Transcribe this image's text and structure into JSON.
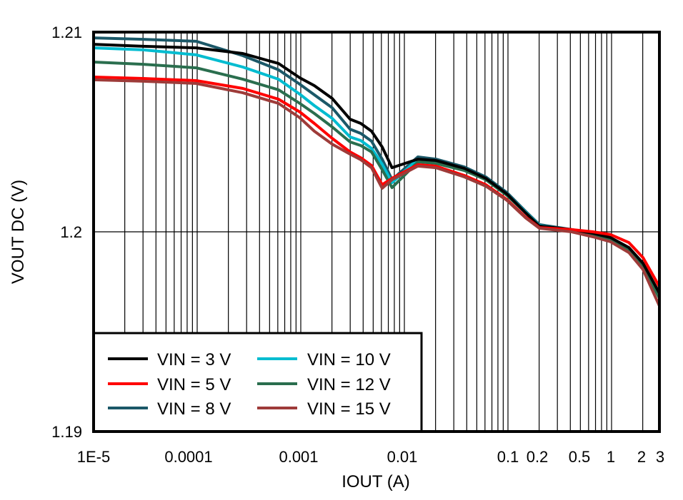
{
  "chart_data": {
    "type": "line",
    "title": "",
    "xlabel": "IOUT (A)",
    "ylabel": "VOUT DC (V)",
    "xscale": "log",
    "xlim": [
      1e-05,
      3
    ],
    "ylim": [
      1.19,
      1.21
    ],
    "grid": true,
    "legend_position": "lower left",
    "x_ticks": [
      {
        "value": 1e-05,
        "label": "1E-5"
      },
      {
        "value": 0.0001,
        "label": "0.0001"
      },
      {
        "value": 0.001,
        "label": "0.001"
      },
      {
        "value": 0.01,
        "label": "0.01"
      },
      {
        "value": 0.1,
        "label": "0.1"
      },
      {
        "value": 0.2,
        "label": "0.2"
      },
      {
        "value": 0.5,
        "label": "0.5"
      },
      {
        "value": 1,
        "label": "1"
      },
      {
        "value": 2,
        "label": "2"
      },
      {
        "value": 3,
        "label": "3"
      }
    ],
    "y_ticks": [
      {
        "value": 1.21,
        "label": "1.21"
      },
      {
        "value": 1.2,
        "label": "1.2"
      },
      {
        "value": 1.19,
        "label": "1.19"
      }
    ],
    "x": [
      1e-05,
      3e-05,
      9.8e-05,
      0.000276,
      0.00061,
      0.00098,
      0.00135,
      0.00201,
      0.00299,
      0.00379,
      0.00482,
      0.0061,
      0.0076,
      0.0135,
      0.0201,
      0.0379,
      0.061,
      0.098,
      0.147,
      0.201,
      0.411,
      0.662,
      0.98,
      1.47,
      2.01,
      2.9
    ],
    "series": [
      {
        "name": "VIN = 3 V",
        "color": "#000000",
        "values": [
          1.20939,
          1.20929,
          1.20921,
          1.20893,
          1.20843,
          1.20771,
          1.20732,
          1.20668,
          1.20564,
          1.20543,
          1.20504,
          1.20425,
          1.20321,
          1.20364,
          1.20357,
          1.20318,
          1.20268,
          1.20189,
          1.20096,
          1.20029,
          1.20011,
          1.19993,
          1.19971,
          1.19921,
          1.19843,
          1.19693
        ]
      },
      {
        "name": "VIN = 5 V",
        "color": "#ff0000",
        "values": [
          1.20775,
          1.20768,
          1.20757,
          1.20718,
          1.20664,
          1.206,
          1.20543,
          1.20468,
          1.204,
          1.20371,
          1.20332,
          1.20236,
          1.20268,
          1.20336,
          1.20329,
          1.20282,
          1.20236,
          1.20161,
          1.20075,
          1.20021,
          1.20011,
          1.2,
          1.19986,
          1.19946,
          1.19871,
          1.19725
        ]
      },
      {
        "name": "VIN = 8 V",
        "color": "#1b5868",
        "values": [
          1.20971,
          1.20964,
          1.20954,
          1.20882,
          1.20811,
          1.20739,
          1.20686,
          1.20621,
          1.20514,
          1.20493,
          1.20454,
          1.20364,
          1.20261,
          1.20375,
          1.20364,
          1.20325,
          1.20275,
          1.20196,
          1.20104,
          1.20036,
          1.20011,
          1.19989,
          1.19964,
          1.19911,
          1.19832,
          1.19682
        ]
      },
      {
        "name": "VIN = 10 V",
        "color": "#00bcd0",
        "values": [
          1.20921,
          1.20911,
          1.20886,
          1.20825,
          1.20764,
          1.20689,
          1.20632,
          1.20568,
          1.20475,
          1.20457,
          1.20418,
          1.20339,
          1.20246,
          1.20364,
          1.20354,
          1.20318,
          1.20268,
          1.20189,
          1.201,
          1.20032,
          1.20007,
          1.19986,
          1.19961,
          1.19907,
          1.19829,
          1.19679
        ]
      },
      {
        "name": "VIN = 12 V",
        "color": "#2a6e4e",
        "values": [
          1.2085,
          1.20839,
          1.20821,
          1.20764,
          1.20711,
          1.20643,
          1.20593,
          1.20525,
          1.2045,
          1.20432,
          1.204,
          1.20311,
          1.20221,
          1.2035,
          1.20343,
          1.20307,
          1.20261,
          1.20182,
          1.20096,
          1.20029,
          1.20004,
          1.19982,
          1.19957,
          1.19904,
          1.19825,
          1.19668
        ]
      },
      {
        "name": "VIN = 15 V",
        "color": "#9e3b39",
        "values": [
          1.20761,
          1.20754,
          1.20743,
          1.20696,
          1.20643,
          1.20571,
          1.20504,
          1.20439,
          1.20389,
          1.20361,
          1.20321,
          1.20218,
          1.20261,
          1.20329,
          1.20321,
          1.20275,
          1.20229,
          1.20157,
          1.20071,
          1.20018,
          1.2,
          1.19975,
          1.1995,
          1.19896,
          1.19811,
          1.19629
        ]
      }
    ],
    "legend": [
      {
        "label": "VIN = 3 V",
        "color": "#000000"
      },
      {
        "label": "VIN = 5 V",
        "color": "#ff0000"
      },
      {
        "label": "VIN = 8 V",
        "color": "#1b5868"
      },
      {
        "label": "VIN = 10 V",
        "color": "#00bcd0"
      },
      {
        "label": "VIN = 12 V",
        "color": "#2a6e4e"
      },
      {
        "label": "VIN = 15 V",
        "color": "#9e3b39"
      }
    ]
  }
}
